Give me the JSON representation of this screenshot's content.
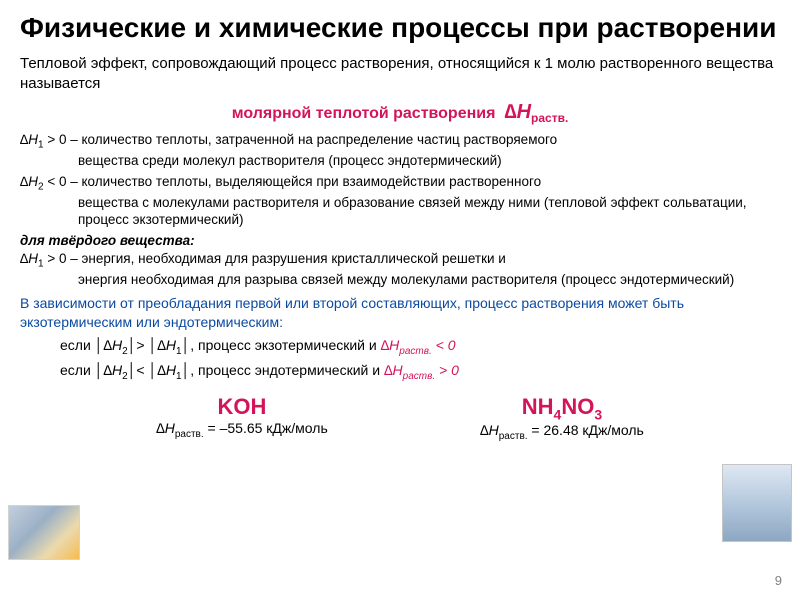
{
  "title": "Физические и химические процессы при растворении",
  "intro": "Тепловой эффект, сопровождающий процесс растворения, относящийся к 1 молю растворенного вещества называется",
  "term": {
    "label": "молярной теплотой растворения",
    "symbol": "∆Н",
    "sub": "раств."
  },
  "def1": {
    "var": "∆H",
    "sub": "1",
    "cond": " > 0 – количество теплоты, затраченной на распределение частиц растворяемого",
    "cont": "вещества среди молекул растворителя (процесс эндотермический)"
  },
  "def2": {
    "var": "∆H",
    "sub": "2",
    "cond": " < 0 – количество теплоты, выделяющейся при взаимодействии растворенного",
    "cont": "вещества с молекулами растворителя и образование связей между ними (тепловой эффект сольватации, процесс экзотермический)"
  },
  "solid_header": "для твёрдого вещества:",
  "def3": {
    "var": "∆H",
    "sub": "1",
    "cond": " > 0 – энергия, необходимая для разрушения кристаллической решетки и",
    "cont": "энергия необходимая для разрыва связей между молекулами растворителя (процесс эндотермический)"
  },
  "conclusion": "В зависимости от преобладания первой или второй составляющих, процесс растворения может быть экзотермическим или эндотермическим:",
  "cond1": {
    "prefix": "если │",
    "v1": "∆H",
    "s1": "2",
    "mid": "│> │",
    "v2": "∆H",
    "s2": "1",
    "suffix": "│, процесс экзотермический и ",
    "res_var": "∆H",
    "res_sub": "раств.",
    "res_op": " < 0"
  },
  "cond2": {
    "prefix": "если │",
    "v1": "∆H",
    "s1": "2",
    "mid": "│< │",
    "v2": "∆H",
    "s2": "1",
    "suffix": "│, процесс эндотермический и ",
    "res_var": "∆H",
    "res_sub": "раств.",
    "res_op": " > 0"
  },
  "compound1": {
    "name": "KOH",
    "val_prefix": "∆H",
    "val_sub": "раств.",
    "val": " = –55.65 кДж/моль"
  },
  "compound2": {
    "name_parts": [
      "NH",
      "4",
      "NO",
      "3"
    ],
    "val_prefix": "∆H",
    "val_sub": "раств.",
    "val": " = 26.48 кДж/моль"
  },
  "slide_number": "9",
  "colors": {
    "accent": "#d4145a",
    "blue": "#0b4aa2",
    "text": "#000000",
    "bg": "#ffffff"
  }
}
